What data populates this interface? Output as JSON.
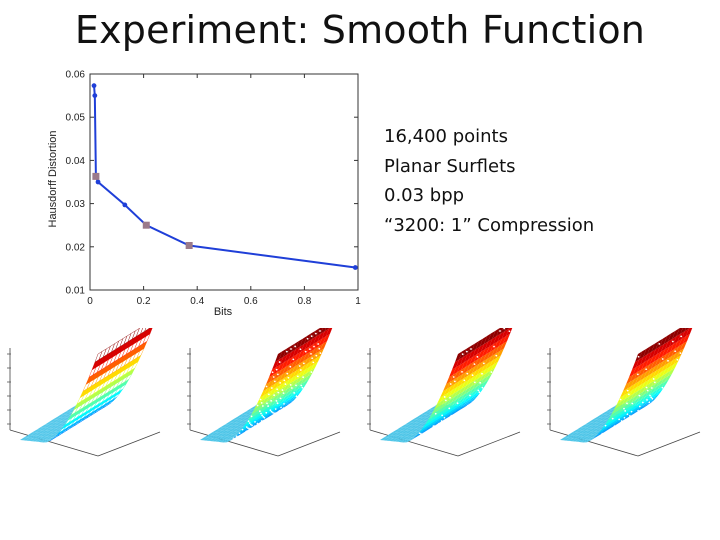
{
  "slide": {
    "title": "Experiment: Smooth Function",
    "info_lines": [
      "16,400 points",
      "Planar Surflets",
      "0.03 bpp",
      "“3200: 1” Compression"
    ]
  },
  "chart_data": {
    "type": "line",
    "title": "",
    "xlabel": "Bits",
    "ylabel": "Hausdorff Distortion",
    "xlim": [
      0,
      1
    ],
    "ylim": [
      0.01,
      0.06
    ],
    "xticks": [
      0,
      0.2,
      0.4,
      0.6,
      0.8,
      1
    ],
    "yticks": [
      0.01,
      0.02,
      0.03,
      0.04,
      0.05,
      0.06
    ],
    "grid": false,
    "series": [
      {
        "color": "#1f3fd8",
        "x": [
          0.015,
          0.018,
          0.022,
          0.03,
          0.13,
          0.21,
          0.37,
          0.99
        ],
        "y": [
          0.0573,
          0.055,
          0.0363,
          0.035,
          0.0297,
          0.025,
          0.0203,
          0.0152
        ]
      }
    ],
    "highlighted_points": [
      {
        "x": 0.022,
        "y": 0.0363
      },
      {
        "x": 0.21,
        "y": 0.025
      },
      {
        "x": 0.37,
        "y": 0.0203
      }
    ],
    "highlight_color": "#9b7a8a"
  },
  "surface_panels": [
    {
      "style": "striped"
    },
    {
      "style": "sparse"
    },
    {
      "style": "dense"
    },
    {
      "style": "dense"
    }
  ]
}
